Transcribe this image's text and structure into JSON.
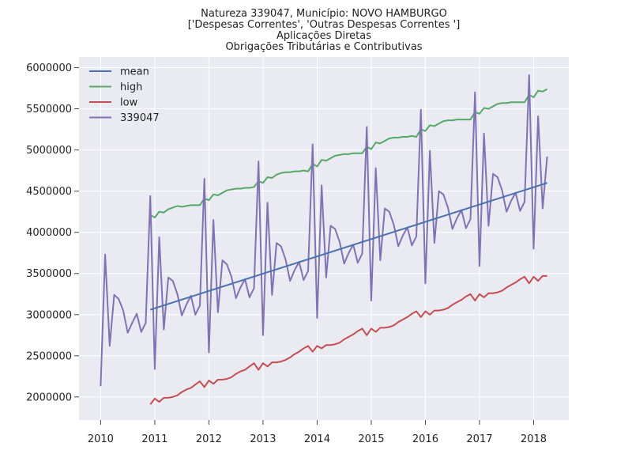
{
  "chart_data": {
    "type": "line",
    "title_lines": [
      "Natureza 339047, Município: NOVO HAMBURGO",
      "['Despesas Correntes', 'Outras Despesas Correntes ']",
      "Aplicações Diretas",
      "Obrigações Tributárias e Contributivas"
    ],
    "xlim": [
      2009.6,
      2018.65
    ],
    "ylim": [
      1720000,
      6130000
    ],
    "x_ticks": [
      2010,
      2011,
      2012,
      2013,
      2014,
      2015,
      2016,
      2017,
      2018
    ],
    "y_ticks": [
      2000000,
      2500000,
      3000000,
      3500000,
      4000000,
      4500000,
      5000000,
      5500000,
      6000000
    ],
    "grid": true,
    "background": "#eaeaf2",
    "legend_position": "top-left",
    "series": [
      {
        "name": "mean",
        "color": "#4c72b0",
        "x": [
          2010.917,
          2018.25
        ],
        "y": [
          3060000,
          4600000
        ]
      },
      {
        "name": "high",
        "color": "#55a868",
        "x": [
          2010.917,
          2011.0,
          2011.083,
          2011.167,
          2011.25,
          2011.333,
          2011.417,
          2011.5,
          2011.583,
          2011.667,
          2011.75,
          2011.833,
          2011.917,
          2012.0,
          2012.083,
          2012.167,
          2012.25,
          2012.333,
          2012.417,
          2012.5,
          2012.583,
          2012.667,
          2012.75,
          2012.833,
          2012.917,
          2013.0,
          2013.083,
          2013.167,
          2013.25,
          2013.333,
          2013.417,
          2013.5,
          2013.583,
          2013.667,
          2013.75,
          2013.833,
          2013.917,
          2014.0,
          2014.083,
          2014.167,
          2014.25,
          2014.333,
          2014.417,
          2014.5,
          2014.583,
          2014.667,
          2014.75,
          2014.833,
          2014.917,
          2015.0,
          2015.083,
          2015.167,
          2015.25,
          2015.333,
          2015.417,
          2015.5,
          2015.583,
          2015.667,
          2015.75,
          2015.833,
          2015.917,
          2016.0,
          2016.083,
          2016.167,
          2016.25,
          2016.333,
          2016.417,
          2016.5,
          2016.583,
          2016.667,
          2016.75,
          2016.833,
          2016.917,
          2017.0,
          2017.083,
          2017.167,
          2017.25,
          2017.333,
          2017.417,
          2017.5,
          2017.583,
          2017.667,
          2017.75,
          2017.833,
          2017.917,
          2018.0,
          2018.083,
          2018.167,
          2018.25
        ],
        "y": [
          4210000,
          4180000,
          4250000,
          4240000,
          4280000,
          4300000,
          4320000,
          4310000,
          4320000,
          4330000,
          4330000,
          4330000,
          4410000,
          4390000,
          4460000,
          4450000,
          4480000,
          4510000,
          4520000,
          4530000,
          4530000,
          4540000,
          4540000,
          4550000,
          4620000,
          4600000,
          4670000,
          4660000,
          4700000,
          4720000,
          4730000,
          4730000,
          4740000,
          4740000,
          4750000,
          4740000,
          4830000,
          4800000,
          4880000,
          4870000,
          4900000,
          4930000,
          4940000,
          4950000,
          4950000,
          4960000,
          4960000,
          4960000,
          5040000,
          5010000,
          5090000,
          5080000,
          5110000,
          5140000,
          5150000,
          5150000,
          5160000,
          5160000,
          5170000,
          5160000,
          5250000,
          5230000,
          5300000,
          5290000,
          5320000,
          5350000,
          5360000,
          5360000,
          5370000,
          5370000,
          5370000,
          5370000,
          5460000,
          5440000,
          5510000,
          5500000,
          5530000,
          5560000,
          5570000,
          5570000,
          5580000,
          5580000,
          5580000,
          5580000,
          5670000,
          5640000,
          5720000,
          5710000,
          5740000
        ]
      },
      {
        "name": "low",
        "color": "#c44e52",
        "x": [
          2010.917,
          2011.0,
          2011.083,
          2011.167,
          2011.25,
          2011.333,
          2011.417,
          2011.5,
          2011.583,
          2011.667,
          2011.75,
          2011.833,
          2011.917,
          2012.0,
          2012.083,
          2012.167,
          2012.25,
          2012.333,
          2012.417,
          2012.5,
          2012.583,
          2012.667,
          2012.75,
          2012.833,
          2012.917,
          2013.0,
          2013.083,
          2013.167,
          2013.25,
          2013.333,
          2013.417,
          2013.5,
          2013.583,
          2013.667,
          2013.75,
          2013.833,
          2013.917,
          2014.0,
          2014.083,
          2014.167,
          2014.25,
          2014.333,
          2014.417,
          2014.5,
          2014.583,
          2014.667,
          2014.75,
          2014.833,
          2014.917,
          2015.0,
          2015.083,
          2015.167,
          2015.25,
          2015.333,
          2015.417,
          2015.5,
          2015.583,
          2015.667,
          2015.75,
          2015.833,
          2015.917,
          2016.0,
          2016.083,
          2016.167,
          2016.25,
          2016.333,
          2016.417,
          2016.5,
          2016.583,
          2016.667,
          2016.75,
          2016.833,
          2016.917,
          2017.0,
          2017.083,
          2017.167,
          2017.25,
          2017.333,
          2017.417,
          2017.5,
          2017.583,
          2017.667,
          2017.75,
          2017.833,
          2017.917,
          2018.0,
          2018.083,
          2018.167,
          2018.25
        ],
        "y": [
          1910000,
          1980000,
          1940000,
          1990000,
          1990000,
          2000000,
          2020000,
          2060000,
          2090000,
          2110000,
          2150000,
          2190000,
          2120000,
          2200000,
          2160000,
          2210000,
          2210000,
          2220000,
          2240000,
          2280000,
          2310000,
          2330000,
          2370000,
          2410000,
          2330000,
          2410000,
          2370000,
          2420000,
          2420000,
          2430000,
          2450000,
          2480000,
          2520000,
          2550000,
          2590000,
          2620000,
          2550000,
          2620000,
          2590000,
          2630000,
          2630000,
          2640000,
          2660000,
          2700000,
          2730000,
          2760000,
          2800000,
          2830000,
          2750000,
          2830000,
          2790000,
          2840000,
          2840000,
          2850000,
          2870000,
          2910000,
          2940000,
          2970000,
          3010000,
          3040000,
          2970000,
          3040000,
          3000000,
          3050000,
          3050000,
          3060000,
          3080000,
          3120000,
          3150000,
          3180000,
          3220000,
          3250000,
          3170000,
          3250000,
          3210000,
          3260000,
          3260000,
          3270000,
          3290000,
          3330000,
          3360000,
          3390000,
          3430000,
          3460000,
          3380000,
          3460000,
          3410000,
          3470000,
          3470000
        ]
      },
      {
        "name": "339047",
        "color": "#8172b2",
        "x": [
          2010.0,
          2010.083,
          2010.167,
          2010.25,
          2010.333,
          2010.417,
          2010.5,
          2010.583,
          2010.667,
          2010.75,
          2010.833,
          2010.917,
          2011.0,
          2011.083,
          2011.167,
          2011.25,
          2011.333,
          2011.417,
          2011.5,
          2011.583,
          2011.667,
          2011.75,
          2011.833,
          2011.917,
          2012.0,
          2012.083,
          2012.167,
          2012.25,
          2012.333,
          2012.417,
          2012.5,
          2012.583,
          2012.667,
          2012.75,
          2012.833,
          2012.917,
          2013.0,
          2013.083,
          2013.167,
          2013.25,
          2013.333,
          2013.417,
          2013.5,
          2013.583,
          2013.667,
          2013.75,
          2013.833,
          2013.917,
          2014.0,
          2014.083,
          2014.167,
          2014.25,
          2014.333,
          2014.417,
          2014.5,
          2014.583,
          2014.667,
          2014.75,
          2014.833,
          2014.917,
          2015.0,
          2015.083,
          2015.167,
          2015.25,
          2015.333,
          2015.417,
          2015.5,
          2015.583,
          2015.667,
          2015.75,
          2015.833,
          2015.917,
          2016.0,
          2016.083,
          2016.167,
          2016.25,
          2016.333,
          2016.417,
          2016.5,
          2016.583,
          2016.667,
          2016.75,
          2016.833,
          2016.917,
          2017.0,
          2017.083,
          2017.167,
          2017.25,
          2017.333,
          2017.417,
          2017.5,
          2017.583,
          2017.667,
          2017.75,
          2017.833,
          2017.917,
          2018.0,
          2018.083,
          2018.167,
          2018.25
        ],
        "y": [
          2130000,
          3730000,
          2620000,
          3240000,
          3190000,
          3050000,
          2780000,
          2900000,
          3010000,
          2790000,
          2900000,
          4440000,
          2340000,
          3940000,
          2820000,
          3450000,
          3410000,
          3250000,
          2990000,
          3120000,
          3230000,
          3000000,
          3110000,
          4650000,
          2540000,
          4150000,
          3030000,
          3660000,
          3610000,
          3460000,
          3200000,
          3330000,
          3430000,
          3210000,
          3320000,
          4860000,
          2750000,
          4360000,
          3240000,
          3870000,
          3830000,
          3670000,
          3410000,
          3540000,
          3640000,
          3420000,
          3530000,
          5070000,
          2960000,
          4570000,
          3450000,
          4080000,
          4040000,
          3880000,
          3620000,
          3750000,
          3850000,
          3630000,
          3740000,
          5280000,
          3170000,
          4780000,
          3660000,
          4290000,
          4250000,
          4090000,
          3830000,
          3960000,
          4060000,
          3840000,
          3950000,
          5490000,
          3380000,
          4990000,
          3870000,
          4500000,
          4460000,
          4300000,
          4040000,
          4170000,
          4270000,
          4050000,
          4160000,
          5700000,
          3590000,
          5200000,
          4080000,
          4710000,
          4670000,
          4510000,
          4250000,
          4380000,
          4480000,
          4260000,
          4370000,
          5910000,
          3800000,
          5410000,
          4290000,
          4920000
        ]
      }
    ]
  }
}
